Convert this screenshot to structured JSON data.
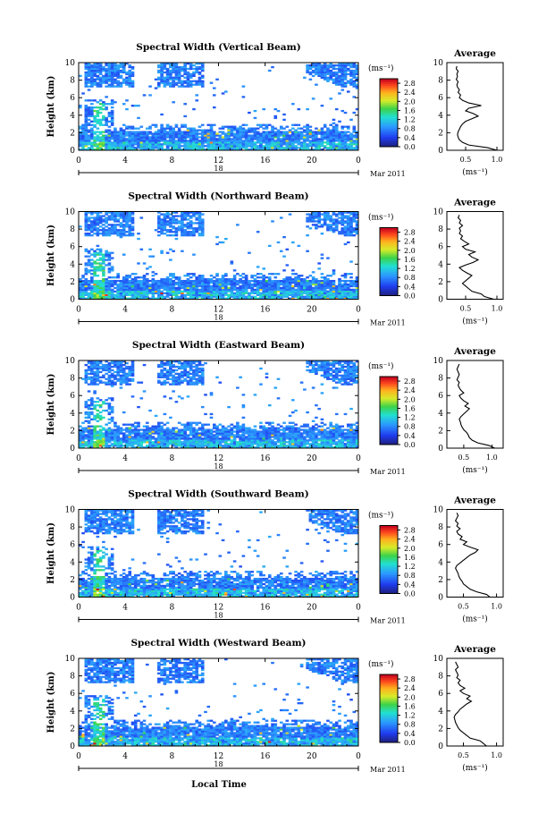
{
  "figure": {
    "xlabel": "Local Time"
  },
  "chart_data": [
    {
      "type": "heatmap",
      "title": "Spectral Width (Vertical Beam)",
      "ylabel": "Height (km)",
      "x_ticks": [
        "0",
        "4",
        "8",
        "12",
        "16",
        "20",
        "0"
      ],
      "y_ticks": [
        "0",
        "2",
        "4",
        "6",
        "8",
        "10"
      ],
      "xlim": [
        0,
        24
      ],
      "ylim": [
        0,
        10
      ],
      "day_label": "18",
      "date_label": "Mar 2011",
      "colorbar": {
        "unit": "(ms⁻¹)",
        "ticks": [
          "2.8",
          "2.4",
          "2.0",
          "1.6",
          "1.2",
          "0.8",
          "0.4",
          "0.0"
        ],
        "range": [
          0,
          3.0
        ]
      },
      "average": {
        "title": "Average",
        "xlabel": "(ms⁻¹)",
        "x_ticks": [
          "0.5",
          "1.0"
        ],
        "x_tick_values": [
          0.5,
          1.0
        ],
        "xlim": [
          0.2,
          1.1
        ],
        "y_ticks": [
          "0",
          "2",
          "4",
          "6",
          "8",
          "10"
        ],
        "height": [
          0,
          0.3,
          0.6,
          0.9,
          1.2,
          1.5,
          1.8,
          2.1,
          2.4,
          2.7,
          3.0,
          3.3,
          3.6,
          3.9,
          4.2,
          4.5,
          4.8,
          5.1,
          5.4,
          5.7,
          6.0,
          6.3,
          6.6,
          6.9,
          7.2,
          7.5,
          7.8,
          8.1,
          8.4,
          8.7,
          9.0,
          9.3,
          9.6
        ],
        "values": [
          1.0,
          0.85,
          0.55,
          0.45,
          0.4,
          0.38,
          0.37,
          0.38,
          0.4,
          0.42,
          0.45,
          0.5,
          0.6,
          0.7,
          0.62,
          0.5,
          0.55,
          0.75,
          0.55,
          0.45,
          0.4,
          0.42,
          0.38,
          0.4,
          0.37,
          0.36,
          0.38,
          0.35,
          0.37,
          0.36,
          0.38,
          0.35,
          0.36
        ]
      }
    },
    {
      "type": "heatmap",
      "title": "Spectral Width (Northward Beam)",
      "ylabel": "Height (km)",
      "x_ticks": [
        "0",
        "4",
        "8",
        "12",
        "16",
        "20",
        "0"
      ],
      "y_ticks": [
        "0",
        "2",
        "4",
        "6",
        "8",
        "10"
      ],
      "xlim": [
        0,
        24
      ],
      "ylim": [
        0,
        10
      ],
      "day_label": "18",
      "date_label": "Mar 2011",
      "colorbar": {
        "unit": "(ms⁻¹)",
        "ticks": [
          "2.8",
          "2.4",
          "2.0",
          "1.6",
          "1.2",
          "0.8",
          "0.4",
          "0.0"
        ],
        "range": [
          0,
          3.0
        ]
      },
      "average": {
        "title": "Average",
        "xlabel": "(ms⁻¹)",
        "x_ticks": [
          "0.5",
          "1.0"
        ],
        "x_tick_values": [
          0.5,
          1.0
        ],
        "xlim": [
          0.2,
          1.1
        ],
        "y_ticks": [
          "0",
          "2",
          "4",
          "6",
          "8",
          "10"
        ],
        "height": [
          0,
          0.3,
          0.6,
          0.9,
          1.2,
          1.5,
          1.8,
          2.1,
          2.4,
          2.7,
          3.0,
          3.3,
          3.6,
          3.9,
          4.2,
          4.5,
          4.8,
          5.1,
          5.4,
          5.7,
          6.0,
          6.3,
          6.6,
          6.9,
          7.2,
          7.5,
          7.8,
          8.1,
          8.4,
          8.7,
          9.0,
          9.3,
          9.6
        ],
        "values": [
          0.95,
          0.8,
          0.75,
          0.6,
          0.55,
          0.5,
          0.45,
          0.5,
          0.55,
          0.6,
          0.52,
          0.45,
          0.4,
          0.5,
          0.62,
          0.7,
          0.6,
          0.55,
          0.65,
          0.5,
          0.45,
          0.55,
          0.48,
          0.42,
          0.45,
          0.4,
          0.42,
          0.4,
          0.45,
          0.4,
          0.42,
          0.38,
          0.4
        ]
      }
    },
    {
      "type": "heatmap",
      "title": "Spectral Width (Eastward Beam)",
      "ylabel": "Height (km)",
      "x_ticks": [
        "0",
        "4",
        "8",
        "12",
        "16",
        "20",
        "0"
      ],
      "y_ticks": [
        "0",
        "2",
        "4",
        "6",
        "8",
        "10"
      ],
      "xlim": [
        0,
        24
      ],
      "ylim": [
        0,
        10
      ],
      "day_label": "18",
      "date_label": "Mar 2011",
      "colorbar": {
        "unit": "(ms⁻¹)",
        "ticks": [
          "2.8",
          "2.4",
          "2.0",
          "1.6",
          "1.2",
          "0.8",
          "0.4",
          "0.0"
        ],
        "range": [
          0,
          3.0
        ]
      },
      "average": {
        "title": "Average",
        "xlabel": "(ms⁻¹)",
        "x_ticks": [
          "0.5",
          "1.0"
        ],
        "x_tick_values": [
          0.5,
          1.0
        ],
        "xlim": [
          0.2,
          1.2
        ],
        "y_ticks": [
          "0",
          "2",
          "4",
          "6",
          "8",
          "10"
        ],
        "height": [
          0,
          0.3,
          0.6,
          0.9,
          1.2,
          1.5,
          1.8,
          2.1,
          2.4,
          2.7,
          3.0,
          3.3,
          3.6,
          3.9,
          4.2,
          4.5,
          4.8,
          5.1,
          5.4,
          5.7,
          6.0,
          6.3,
          6.6,
          6.9,
          7.2,
          7.5,
          7.8,
          8.1,
          8.4,
          8.7,
          9.0,
          9.3,
          9.6
        ],
        "values": [
          1.05,
          0.95,
          0.75,
          0.65,
          0.6,
          0.58,
          0.55,
          0.5,
          0.47,
          0.45,
          0.44,
          0.42,
          0.45,
          0.5,
          0.55,
          0.6,
          0.52,
          0.58,
          0.5,
          0.45,
          0.42,
          0.5,
          0.45,
          0.42,
          0.4,
          0.42,
          0.38,
          0.4,
          0.42,
          0.4,
          0.38,
          0.4,
          0.42
        ]
      }
    },
    {
      "type": "heatmap",
      "title": "Spectral Width (Southward Beam)",
      "ylabel": "Height (km)",
      "x_ticks": [
        "0",
        "4",
        "8",
        "12",
        "16",
        "20",
        "0"
      ],
      "y_ticks": [
        "0",
        "2",
        "4",
        "6",
        "8",
        "10"
      ],
      "xlim": [
        0,
        24
      ],
      "ylim": [
        0,
        10
      ],
      "day_label": "18",
      "date_label": "Mar 2011",
      "colorbar": {
        "unit": "(ms⁻¹)",
        "ticks": [
          "2.8",
          "2.4",
          "2.0",
          "1.6",
          "1.2",
          "0.8",
          "0.4",
          "0.0"
        ],
        "range": [
          0,
          3.0
        ]
      },
      "average": {
        "title": "Average",
        "xlabel": "(ms⁻¹)",
        "x_ticks": [
          "0.5",
          "1.0"
        ],
        "x_tick_values": [
          0.5,
          1.0
        ],
        "xlim": [
          0.25,
          1.1
        ],
        "y_ticks": [
          "0",
          "2",
          "4",
          "6",
          "8",
          "10"
        ],
        "height": [
          0,
          0.3,
          0.6,
          0.9,
          1.2,
          1.5,
          1.8,
          2.1,
          2.4,
          2.7,
          3.0,
          3.3,
          3.6,
          3.9,
          4.2,
          4.5,
          4.8,
          5.1,
          5.4,
          5.7,
          6.0,
          6.3,
          6.6,
          6.9,
          7.2,
          7.5,
          7.8,
          8.1,
          8.4,
          8.7,
          9.0,
          9.3,
          9.6
        ],
        "values": [
          0.9,
          0.85,
          0.7,
          0.6,
          0.55,
          0.5,
          0.48,
          0.45,
          0.43,
          0.42,
          0.4,
          0.38,
          0.4,
          0.45,
          0.5,
          0.55,
          0.6,
          0.68,
          0.72,
          0.6,
          0.5,
          0.55,
          0.45,
          0.48,
          0.42,
          0.4,
          0.45,
          0.4,
          0.42,
          0.38,
          0.4,
          0.42,
          0.4
        ]
      }
    },
    {
      "type": "heatmap",
      "title": "Spectral Width (Westward Beam)",
      "ylabel": "Height (km)",
      "x_ticks": [
        "0",
        "4",
        "8",
        "12",
        "16",
        "20",
        "0"
      ],
      "y_ticks": [
        "0",
        "2",
        "4",
        "6",
        "8",
        "10"
      ],
      "xlim": [
        0,
        24
      ],
      "ylim": [
        0,
        10
      ],
      "day_label": "18",
      "date_label": "Mar 2011",
      "colorbar": {
        "unit": "(ms⁻¹)",
        "ticks": [
          "2.8",
          "2.4",
          "2.0",
          "1.6",
          "1.2",
          "0.8",
          "0.4",
          "0.0"
        ],
        "range": [
          0,
          3.0
        ]
      },
      "average": {
        "title": "Average",
        "xlabel": "(ms⁻¹)",
        "x_ticks": [
          "0.5",
          "1.0"
        ],
        "x_tick_values": [
          0.5,
          1.0
        ],
        "xlim": [
          0.25,
          1.1
        ],
        "y_ticks": [
          "0",
          "2",
          "4",
          "6",
          "8",
          "10"
        ],
        "height": [
          0,
          0.3,
          0.6,
          0.9,
          1.2,
          1.5,
          1.8,
          2.1,
          2.4,
          2.7,
          3.0,
          3.3,
          3.6,
          3.9,
          4.2,
          4.5,
          4.8,
          5.1,
          5.4,
          5.7,
          6.0,
          6.3,
          6.6,
          6.9,
          7.2,
          7.5,
          7.8,
          8.1,
          8.4,
          8.7,
          9.0,
          9.3,
          9.6
        ],
        "values": [
          0.85,
          0.8,
          0.75,
          0.6,
          0.55,
          0.5,
          0.45,
          0.42,
          0.4,
          0.38,
          0.37,
          0.36,
          0.38,
          0.42,
          0.45,
          0.5,
          0.55,
          0.62,
          0.55,
          0.6,
          0.5,
          0.45,
          0.52,
          0.45,
          0.42,
          0.45,
          0.4,
          0.42,
          0.4,
          0.38,
          0.42,
          0.4,
          0.38
        ]
      }
    }
  ]
}
